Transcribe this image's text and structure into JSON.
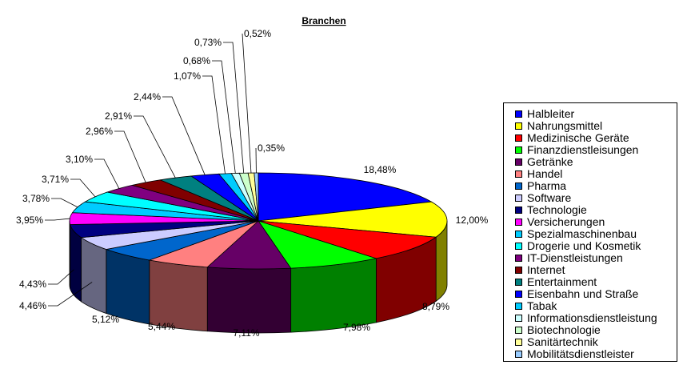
{
  "chart_data": {
    "type": "pie",
    "title": "Branchen",
    "legend_position": "right",
    "slices": [
      {
        "name": "Halbleiter",
        "value": 18.48,
        "label": "18,48%",
        "color": "#0000FF"
      },
      {
        "name": "Nahrungsmittel",
        "value": 12.0,
        "label": "12,00%",
        "color": "#FFFF00"
      },
      {
        "name": "Medizinische Geräte",
        "value": 8.79,
        "label": "8,79%",
        "color": "#FF0000"
      },
      {
        "name": "Finanzdienstleisungen",
        "value": 7.98,
        "label": "7,98%",
        "color": "#00FF00"
      },
      {
        "name": "Getränke",
        "value": 7.11,
        "label": "7,11%",
        "color": "#660066"
      },
      {
        "name": "Handel",
        "value": 5.44,
        "label": "5,44%",
        "color": "#FF8080"
      },
      {
        "name": "Pharma",
        "value": 5.12,
        "label": "5,12%",
        "color": "#0066CC"
      },
      {
        "name": "Software",
        "value": 4.46,
        "label": "4,46%",
        "color": "#CCCCFF"
      },
      {
        "name": "Technologie",
        "value": 4.43,
        "label": "4,43%",
        "color": "#000080"
      },
      {
        "name": "Versicherungen",
        "value": 3.95,
        "label": "3,95%",
        "color": "#FF00FF"
      },
      {
        "name": "Spezialmaschinenbau",
        "value": 3.78,
        "label": "3,78%",
        "color": "#00CCFF"
      },
      {
        "name": "Drogerie und Kosmetik",
        "value": 3.71,
        "label": "3,71%",
        "color": "#00FFFF"
      },
      {
        "name": "IT-Dienstleistungen",
        "value": 3.1,
        "label": "3,10%",
        "color": "#800080"
      },
      {
        "name": "Internet",
        "value": 2.96,
        "label": "2,96%",
        "color": "#800000"
      },
      {
        "name": "Entertainment",
        "value": 2.91,
        "label": "2,91%",
        "color": "#008080"
      },
      {
        "name": "Eisenbahn und Straße",
        "value": 2.44,
        "label": "2,44%",
        "color": "#0000FF"
      },
      {
        "name": "Tabak",
        "value": 1.07,
        "label": "1,07%",
        "color": "#00CCFF"
      },
      {
        "name": "Informationsdienstleistung",
        "value": 0.68,
        "label": "0,68%",
        "color": "#CCFFFF"
      },
      {
        "name": "Biotechnologie",
        "value": 0.73,
        "label": "0,73%",
        "color": "#CCFFCC"
      },
      {
        "name": "Sanitärtechnik",
        "value": 0.52,
        "label": "0,52%",
        "color": "#FFFF99"
      },
      {
        "name": "Mobilitätsdienstleister",
        "value": 0.35,
        "label": "0,35%",
        "color": "#99CCFF"
      }
    ]
  }
}
